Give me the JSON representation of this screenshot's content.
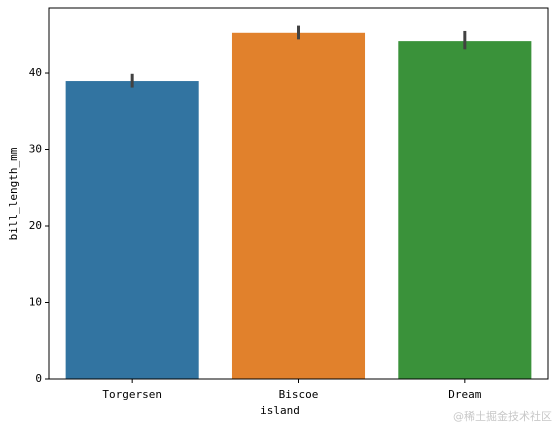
{
  "chart_data": {
    "type": "bar",
    "categories": [
      "Torgersen",
      "Biscoe",
      "Dream"
    ],
    "values": [
      38.95,
      45.26,
      44.17
    ],
    "ci": [
      [
        38.1,
        39.9
      ],
      [
        44.4,
        46.2
      ],
      [
        43.1,
        45.5
      ]
    ],
    "colors": [
      "#3274a1",
      "#e1812c",
      "#3a923a"
    ],
    "xlabel": "island",
    "ylabel": "bill_length_mm",
    "ylim": [
      0,
      48.5
    ],
    "yticks": [
      0,
      10,
      20,
      30,
      40
    ],
    "grid": false,
    "watermark": "@稀土掘金技术社区"
  }
}
